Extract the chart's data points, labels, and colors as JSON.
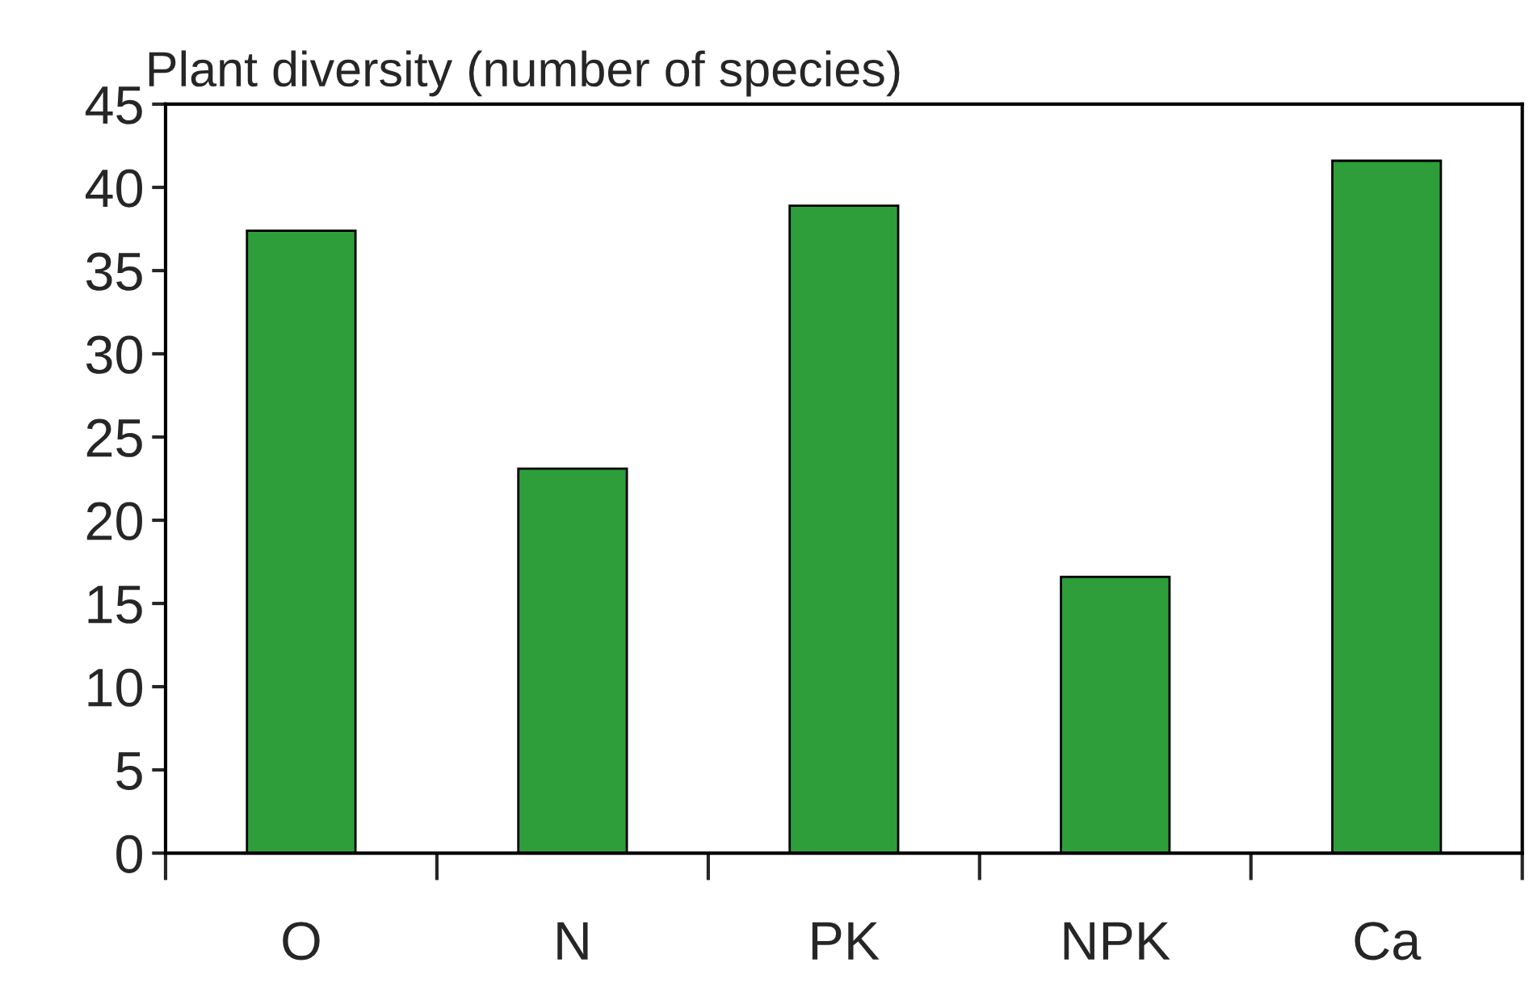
{
  "chart_data": {
    "type": "bar",
    "title": "Plant diversity (number of species)",
    "categories": [
      "O",
      "N",
      "PK",
      "NPK",
      "Ca"
    ],
    "values": [
      37.4,
      23.1,
      38.9,
      16.6,
      41.6
    ],
    "color": "#2e9e3a",
    "ylim": [
      0,
      45
    ],
    "yticks": [
      0,
      5,
      10,
      15,
      20,
      25,
      30,
      35,
      40,
      45
    ],
    "grid": false
  }
}
